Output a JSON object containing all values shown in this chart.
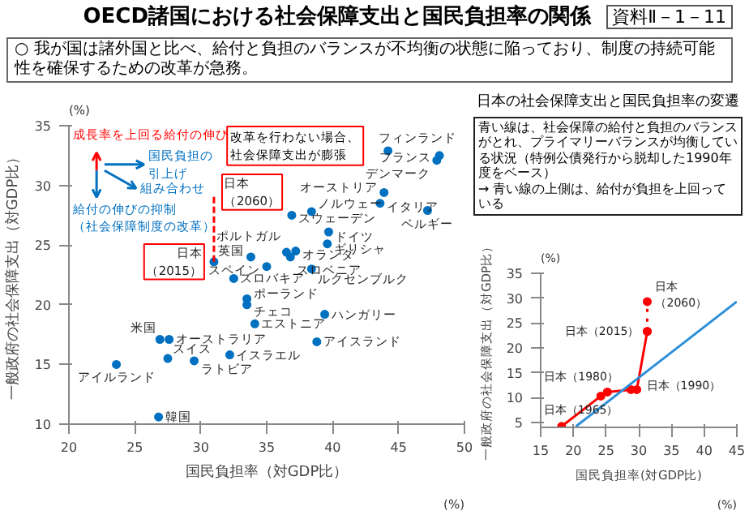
{
  "chart_data": [
    {
      "type": "scatter",
      "title": "OECD諸国における社会保障支出と国民負担率の関係",
      "subtitle": "○ 我が国は諸外国と比べ、給付と負担のバランスが不均衡の状態に陥っており、制度の持続可能性を確保するための改革が急務。",
      "xlabel": "国民負担率（対GDP比）",
      "ylabel": "一般政府の社会保障支出（対GDP比）",
      "xlim": [
        20,
        50
      ],
      "ylim": [
        10,
        35
      ],
      "xticks": [
        20,
        25,
        30,
        35,
        40,
        45,
        50
      ],
      "yticks": [
        10,
        15,
        20,
        25,
        30,
        35
      ],
      "marker": "circle",
      "series": [
        {
          "type": "scatter",
          "color": "#0070c0",
          "x": [
            31,
            44.2,
            48.1,
            47.9,
            43.9,
            43.6,
            47.2,
            38.4,
            36.9,
            39.7,
            36.5,
            39.6,
            37.2,
            33.8,
            36.8,
            35.0,
            38.4,
            32.5,
            33.5,
            33.5,
            39.4,
            34.1,
            38.8,
            26.9,
            27.6,
            27.5,
            29.5,
            32.2,
            23.6,
            26.8
          ],
          "values": [
            23.6,
            32.9,
            32.5,
            32.1,
            29.4,
            28.5,
            27.9,
            27.8,
            27.5,
            26.1,
            24.4,
            25.1,
            24.5,
            24.0,
            24.0,
            23.2,
            23.0,
            22.2,
            20.5,
            20.0,
            19.2,
            18.4,
            16.9,
            17.1,
            17.1,
            15.5,
            15.3,
            15.8,
            15.0,
            10.6
          ]
        },
        {
          "type": "line",
          "color": "#ff0000",
          "line_style": "dashed",
          "marker": "none",
          "x": [
            31,
            31
          ],
          "values": [
            23.6,
            29.3
          ]
        }
      ],
      "annotations": [
        "資料Ⅱ－1－11",
        "成長率を上回る給付の伸び",
        "国民負担の引上げ",
        "組み合わせ",
        "給付の伸びの抑制（社会保障制度の改革）",
        "改革を行わない場合、社会保障支出が膨張",
        "(%)",
        "(%)",
        {
          "text": "日本（2015）",
          "x": 31,
          "y": 23.6
        },
        {
          "text": "日本（2060）",
          "x": 31,
          "y": 29.3
        },
        {
          "text": "フィンランド",
          "x": 44.2,
          "y": 32.9
        },
        {
          "text": "フランス",
          "x": 48.1,
          "y": 32.5
        },
        {
          "text": "デンマーク",
          "x": 47.9,
          "y": 32.1
        },
        {
          "text": "オーストリア",
          "x": 43.9,
          "y": 29.4
        },
        {
          "text": "イタリア",
          "x": 43.6,
          "y": 28.5
        },
        {
          "text": "ベルギー",
          "x": 47.2,
          "y": 27.9
        },
        {
          "text": "ノルウェー",
          "x": 38.4,
          "y": 27.8
        },
        {
          "text": "スウェーデン",
          "x": 36.9,
          "y": 27.5
        },
        {
          "text": "ドイツ",
          "x": 39.7,
          "y": 26.1
        },
        {
          "text": "ポルトガル",
          "x": 36.5,
          "y": 24.4
        },
        {
          "text": "ギリシャ",
          "x": 39.6,
          "y": 25.1
        },
        {
          "text": "オランダ",
          "x": 37.2,
          "y": 24.5
        },
        {
          "text": "英国",
          "x": 33.8,
          "y": 24.0
        },
        {
          "text": "スロベニア",
          "x": 36.8,
          "y": 24.0
        },
        {
          "text": "スペイン",
          "x": 35.0,
          "y": 23.2
        },
        {
          "text": "ルクセンブルク",
          "x": 38.4,
          "y": 23.0
        },
        {
          "text": "スロバキア",
          "x": 32.5,
          "y": 22.2
        },
        {
          "text": "ポーランド",
          "x": 33.5,
          "y": 20.5
        },
        {
          "text": "チェコ",
          "x": 33.5,
          "y": 20.0
        },
        {
          "text": "ハンガリー",
          "x": 39.4,
          "y": 19.2
        },
        {
          "text": "エストニア",
          "x": 34.1,
          "y": 18.4
        },
        {
          "text": "アイスランド",
          "x": 38.8,
          "y": 16.9
        },
        {
          "text": "米国",
          "x": 26.9,
          "y": 17.1
        },
        {
          "text": "オーストラリア",
          "x": 27.6,
          "y": 17.1
        },
        {
          "text": "スイス",
          "x": 27.5,
          "y": 15.5
        },
        {
          "text": "ラトビア",
          "x": 29.5,
          "y": 15.3
        },
        {
          "text": "イスラエル",
          "x": 32.2,
          "y": 15.8
        },
        {
          "text": "アイルランド",
          "x": 23.6,
          "y": 15.0
        },
        {
          "text": "韓国",
          "x": 26.8,
          "y": 10.6
        }
      ]
    },
    {
      "type": "line",
      "title": "日本の社会保障支出と国民負担率の変遷",
      "xlabel": "国民負担率(対GDP比)",
      "ylabel": "一般政府の社会保障支出（対GDP比）",
      "xlim": [
        15,
        45
      ],
      "ylim": [
        4,
        35
      ],
      "xticks": [
        15,
        20,
        25,
        30,
        35,
        40,
        45
      ],
      "yticks": [
        5,
        10,
        15,
        20,
        25,
        30,
        35
      ],
      "marker": "circle",
      "series": [
        {
          "color": "#ff0000",
          "x": [
            18.2,
            24.2,
            25.2,
            28.8,
            29.7,
            31.3
          ],
          "values": [
            4.2,
            10.3,
            11.1,
            11.6,
            11.6,
            23.3
          ]
        },
        {
          "color": "#ff0000",
          "line_style": "dotted",
          "x": [
            31.3,
            31.3
          ],
          "values": [
            23.3,
            29.3
          ]
        },
        {
          "color": "#2e8fd8",
          "marker": "none",
          "x": [
            20.4,
            45
          ],
          "values": [
            4.2,
            29.3
          ]
        }
      ],
      "annotations": [
        "青い線は、社会保障の給付と負担のバランスがとれ、プライマリーバランスが均衡している状況（特例公債発行から脱却した1990年度をベース）\n→ 青い線の上側は、給付が負担を上回っている",
        "(%)",
        "(%)",
        {
          "text": "日本（1965）",
          "x": 18.2,
          "y": 4.2
        },
        {
          "text": "日本（1980）",
          "x": 25.2,
          "y": 11.1
        },
        {
          "text": "日本（1990）",
          "x": 29.7,
          "y": 11.6
        },
        {
          "text": "日本（2015）",
          "x": 31.3,
          "y": 23.3
        },
        {
          "text": "日本（2060）",
          "x": 31.3,
          "y": 29.3
        }
      ]
    }
  ]
}
